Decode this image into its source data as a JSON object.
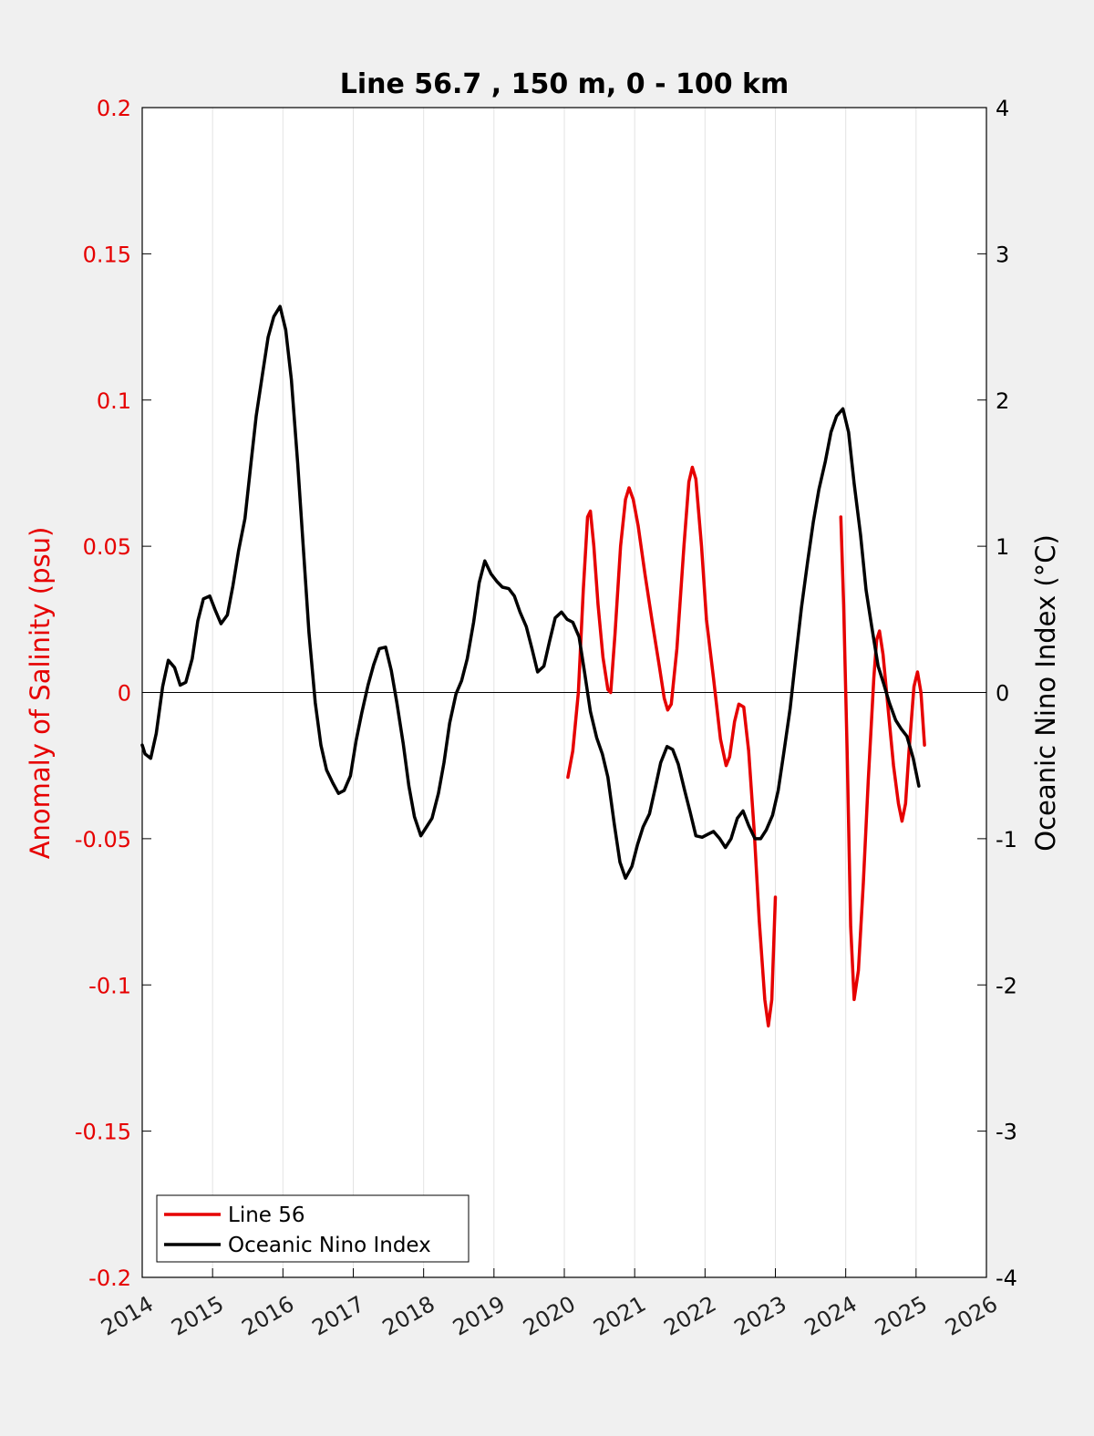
{
  "chart_data": {
    "type": "line",
    "title": "Line 56.7 , 150 m, 0 - 100 km",
    "xlabel": "",
    "ylabel_left": "Anomaly of Salinity (psu)",
    "ylabel_right": "Oceanic Nino Index (°C)",
    "xlim": [
      2014,
      2026
    ],
    "ylim_left": [
      -0.2,
      0.2
    ],
    "ylim_right": [
      -4,
      4
    ],
    "x_ticks": [
      2014,
      2015,
      2016,
      2017,
      2018,
      2019,
      2020,
      2021,
      2022,
      2023,
      2024,
      2025,
      2026
    ],
    "y_left_ticks": [
      "0.2",
      "0.15",
      "0.1",
      "0.05",
      "0",
      "-0.05",
      "-0.1",
      "-0.15",
      "-0.2"
    ],
    "y_right_ticks": [
      "4",
      "3",
      "2",
      "1",
      "0",
      "-1",
      "-2",
      "-3",
      "-4"
    ],
    "grid": "vertical",
    "legend_position": "bottom-left",
    "colors": {
      "salinity": "#e60000",
      "oni": "#000000",
      "left_axis": "#e60000",
      "right_axis": "#000000"
    },
    "series": [
      {
        "name": "Line 56",
        "axis": "left",
        "segments": [
          [
            [
              2020.05,
              -0.029
            ],
            [
              2020.12,
              -0.02
            ],
            [
              2020.2,
              0.0
            ],
            [
              2020.27,
              0.035
            ],
            [
              2020.33,
              0.06
            ],
            [
              2020.37,
              0.062
            ],
            [
              2020.42,
              0.05
            ],
            [
              2020.48,
              0.03
            ],
            [
              2020.55,
              0.012
            ],
            [
              2020.62,
              0.001
            ],
            [
              2020.66,
              0.0
            ],
            [
              2020.72,
              0.02
            ],
            [
              2020.8,
              0.05
            ],
            [
              2020.87,
              0.066
            ],
            [
              2020.92,
              0.07
            ],
            [
              2020.98,
              0.066
            ],
            [
              2021.05,
              0.057
            ],
            [
              2021.15,
              0.04
            ],
            [
              2021.25,
              0.024
            ],
            [
              2021.35,
              0.009
            ],
            [
              2021.42,
              -0.002
            ],
            [
              2021.47,
              -0.006
            ],
            [
              2021.52,
              -0.004
            ],
            [
              2021.6,
              0.015
            ],
            [
              2021.7,
              0.05
            ],
            [
              2021.77,
              0.072
            ],
            [
              2021.82,
              0.077
            ],
            [
              2021.87,
              0.073
            ],
            [
              2021.95,
              0.05
            ],
            [
              2022.02,
              0.025
            ],
            [
              2022.12,
              0.005
            ],
            [
              2022.22,
              -0.016
            ],
            [
              2022.3,
              -0.025
            ],
            [
              2022.35,
              -0.022
            ],
            [
              2022.42,
              -0.01
            ],
            [
              2022.48,
              -0.004
            ],
            [
              2022.55,
              -0.005
            ],
            [
              2022.62,
              -0.02
            ],
            [
              2022.7,
              -0.048
            ],
            [
              2022.77,
              -0.078
            ],
            [
              2022.85,
              -0.105
            ],
            [
              2022.9,
              -0.114
            ],
            [
              2022.95,
              -0.105
            ],
            [
              2023.0,
              -0.07
            ]
          ],
          [
            [
              2023.93,
              0.06
            ],
            [
              2023.97,
              0.03
            ],
            [
              2024.02,
              -0.02
            ],
            [
              2024.07,
              -0.08
            ],
            [
              2024.12,
              -0.105
            ],
            [
              2024.18,
              -0.095
            ],
            [
              2024.25,
              -0.065
            ],
            [
              2024.32,
              -0.03
            ],
            [
              2024.4,
              0.005
            ],
            [
              2024.44,
              0.018
            ],
            [
              2024.48,
              0.021
            ],
            [
              2024.53,
              0.013
            ],
            [
              2024.6,
              -0.005
            ],
            [
              2024.68,
              -0.025
            ],
            [
              2024.75,
              -0.038
            ],
            [
              2024.8,
              -0.044
            ],
            [
              2024.85,
              -0.038
            ],
            [
              2024.9,
              -0.02
            ],
            [
              2024.97,
              0.002
            ],
            [
              2025.02,
              0.007
            ],
            [
              2025.07,
              0.0
            ],
            [
              2025.12,
              -0.018
            ]
          ]
        ]
      },
      {
        "name": "Oceanic Nino Index",
        "axis": "right",
        "segments": [
          [
            [
              2014.0,
              -0.36
            ],
            [
              2014.04,
              -0.42
            ],
            [
              2014.12,
              -0.45
            ],
            [
              2014.2,
              -0.28
            ],
            [
              2014.29,
              0.04
            ],
            [
              2014.37,
              0.22
            ],
            [
              2014.46,
              0.17
            ],
            [
              2014.54,
              0.05
            ],
            [
              2014.62,
              0.07
            ],
            [
              2014.71,
              0.23
            ],
            [
              2014.79,
              0.49
            ],
            [
              2014.87,
              0.64
            ],
            [
              2014.96,
              0.66
            ],
            [
              2015.04,
              0.56
            ],
            [
              2015.12,
              0.47
            ],
            [
              2015.21,
              0.53
            ],
            [
              2015.29,
              0.73
            ],
            [
              2015.37,
              0.97
            ],
            [
              2015.46,
              1.19
            ],
            [
              2015.54,
              1.54
            ],
            [
              2015.62,
              1.89
            ],
            [
              2015.71,
              2.18
            ],
            [
              2015.79,
              2.43
            ],
            [
              2015.87,
              2.57
            ],
            [
              2015.96,
              2.64
            ],
            [
              2016.04,
              2.48
            ],
            [
              2016.12,
              2.14
            ],
            [
              2016.21,
              1.57
            ],
            [
              2016.29,
              0.99
            ],
            [
              2016.37,
              0.41
            ],
            [
              2016.46,
              -0.07
            ],
            [
              2016.54,
              -0.36
            ],
            [
              2016.62,
              -0.53
            ],
            [
              2016.71,
              -0.62
            ],
            [
              2016.79,
              -0.69
            ],
            [
              2016.87,
              -0.67
            ],
            [
              2016.96,
              -0.57
            ],
            [
              2017.04,
              -0.33
            ],
            [
              2017.12,
              -0.14
            ],
            [
              2017.21,
              0.05
            ],
            [
              2017.29,
              0.19
            ],
            [
              2017.37,
              0.3
            ],
            [
              2017.46,
              0.31
            ],
            [
              2017.54,
              0.15
            ],
            [
              2017.62,
              -0.07
            ],
            [
              2017.71,
              -0.35
            ],
            [
              2017.79,
              -0.64
            ],
            [
              2017.87,
              -0.85
            ],
            [
              2017.96,
              -0.98
            ],
            [
              2018.04,
              -0.92
            ],
            [
              2018.12,
              -0.86
            ],
            [
              2018.21,
              -0.69
            ],
            [
              2018.29,
              -0.48
            ],
            [
              2018.37,
              -0.21
            ],
            [
              2018.46,
              -0.01
            ],
            [
              2018.54,
              0.08
            ],
            [
              2018.62,
              0.23
            ],
            [
              2018.71,
              0.48
            ],
            [
              2018.79,
              0.75
            ],
            [
              2018.87,
              0.9
            ],
            [
              2018.96,
              0.81
            ],
            [
              2019.04,
              0.76
            ],
            [
              2019.12,
              0.72
            ],
            [
              2019.21,
              0.71
            ],
            [
              2019.29,
              0.66
            ],
            [
              2019.37,
              0.55
            ],
            [
              2019.46,
              0.45
            ],
            [
              2019.54,
              0.3
            ],
            [
              2019.62,
              0.14
            ],
            [
              2019.71,
              0.18
            ],
            [
              2019.79,
              0.35
            ],
            [
              2019.87,
              0.51
            ],
            [
              2019.96,
              0.55
            ],
            [
              2020.04,
              0.5
            ],
            [
              2020.12,
              0.48
            ],
            [
              2020.21,
              0.38
            ],
            [
              2020.29,
              0.13
            ],
            [
              2020.37,
              -0.13
            ],
            [
              2020.46,
              -0.31
            ],
            [
              2020.54,
              -0.42
            ],
            [
              2020.62,
              -0.58
            ],
            [
              2020.71,
              -0.9
            ],
            [
              2020.79,
              -1.16
            ],
            [
              2020.87,
              -1.27
            ],
            [
              2020.96,
              -1.19
            ],
            [
              2021.04,
              -1.04
            ],
            [
              2021.12,
              -0.92
            ],
            [
              2021.21,
              -0.83
            ],
            [
              2021.29,
              -0.66
            ],
            [
              2021.37,
              -0.48
            ],
            [
              2021.46,
              -0.37
            ],
            [
              2021.54,
              -0.39
            ],
            [
              2021.62,
              -0.49
            ],
            [
              2021.71,
              -0.67
            ],
            [
              2021.79,
              -0.82
            ],
            [
              2021.87,
              -0.98
            ],
            [
              2021.96,
              -0.99
            ],
            [
              2022.04,
              -0.97
            ],
            [
              2022.12,
              -0.95
            ],
            [
              2022.21,
              -1.0
            ],
            [
              2022.29,
              -1.06
            ],
            [
              2022.37,
              -1.0
            ],
            [
              2022.46,
              -0.86
            ],
            [
              2022.54,
              -0.81
            ],
            [
              2022.62,
              -0.91
            ],
            [
              2022.71,
              -1.0
            ],
            [
              2022.79,
              -1.0
            ],
            [
              2022.87,
              -0.94
            ],
            [
              2022.96,
              -0.84
            ],
            [
              2023.04,
              -0.67
            ],
            [
              2023.12,
              -0.41
            ],
            [
              2023.21,
              -0.11
            ],
            [
              2023.29,
              0.24
            ],
            [
              2023.37,
              0.58
            ],
            [
              2023.46,
              0.9
            ],
            [
              2023.54,
              1.17
            ],
            [
              2023.62,
              1.39
            ],
            [
              2023.71,
              1.58
            ],
            [
              2023.79,
              1.78
            ],
            [
              2023.87,
              1.89
            ],
            [
              2023.96,
              1.94
            ],
            [
              2024.04,
              1.78
            ],
            [
              2024.12,
              1.43
            ],
            [
              2024.21,
              1.08
            ],
            [
              2024.29,
              0.7
            ],
            [
              2024.37,
              0.45
            ],
            [
              2024.46,
              0.18
            ],
            [
              2024.54,
              0.06
            ],
            [
              2024.62,
              -0.07
            ],
            [
              2024.71,
              -0.19
            ],
            [
              2024.79,
              -0.25
            ],
            [
              2024.87,
              -0.3
            ],
            [
              2024.96,
              -0.45
            ],
            [
              2025.04,
              -0.64
            ]
          ]
        ]
      }
    ]
  }
}
